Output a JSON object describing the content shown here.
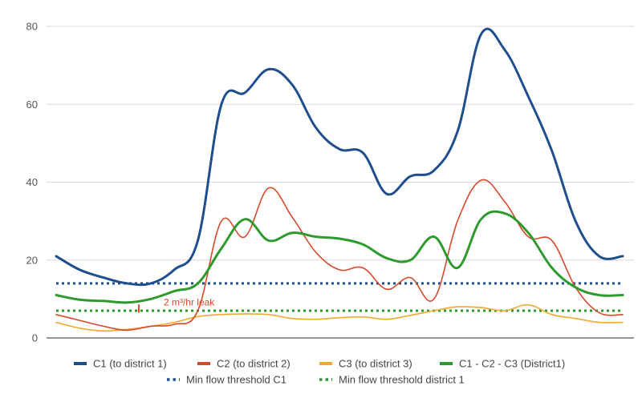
{
  "chart_data": {
    "type": "line",
    "title": "",
    "xlabel": "",
    "ylabel": "",
    "ylim": [
      0,
      80
    ],
    "yticks": [
      0,
      20,
      40,
      60,
      80
    ],
    "grid": "horizontal",
    "legend_position": "bottom",
    "series": [
      {
        "name": "C1 (to district 1)",
        "color": "#1f4e8f",
        "style": "solid",
        "x": [
          0,
          1,
          2,
          3,
          4,
          5,
          6,
          7,
          8,
          9,
          10,
          11,
          12,
          13,
          14,
          15,
          16,
          17,
          18,
          19,
          20,
          21,
          22,
          23,
          24
        ],
        "values": [
          21,
          17.5,
          15.5,
          14,
          14,
          17.5,
          25,
          60,
          63,
          69,
          65,
          54,
          48.5,
          47.5,
          37,
          41.5,
          43,
          53,
          78,
          74,
          62,
          48,
          30,
          21,
          21
        ]
      },
      {
        "name": "C2 (to district 2)",
        "color": "#d9482b",
        "style": "solid",
        "x": [
          0,
          1,
          2,
          3,
          4,
          5,
          6,
          7,
          8,
          9,
          10,
          11,
          12,
          13,
          14,
          15,
          16,
          17,
          18,
          19,
          20,
          21,
          22,
          23,
          24
        ],
        "values": [
          6,
          4.5,
          3,
          2,
          3,
          3.5,
          7,
          30,
          26,
          38.5,
          31,
          22,
          17.5,
          18,
          12.5,
          15.5,
          10,
          30,
          40.5,
          35,
          26,
          25,
          13,
          6.5,
          6
        ]
      },
      {
        "name": "C3 (to district 3)",
        "color": "#f2a72e",
        "style": "solid",
        "x": [
          0,
          1,
          2,
          3,
          4,
          5,
          6,
          7,
          8,
          9,
          10,
          11,
          12,
          13,
          14,
          15,
          16,
          17,
          18,
          19,
          20,
          21,
          22,
          23,
          24
        ],
        "values": [
          4,
          2.5,
          1.8,
          2.2,
          3,
          4,
          5.5,
          6,
          6.2,
          6,
          5,
          4.8,
          5.2,
          5.4,
          4.8,
          5.8,
          7,
          8,
          7.8,
          7,
          8.5,
          6,
          5,
          4,
          4
        ]
      },
      {
        "name": "C1 - C2 - C3 (District1)",
        "color": "#2e9a2e",
        "style": "solid",
        "x": [
          0,
          1,
          2,
          3,
          4,
          5,
          6,
          7,
          8,
          9,
          10,
          11,
          12,
          13,
          14,
          15,
          16,
          17,
          18,
          19,
          20,
          21,
          22,
          23,
          24
        ],
        "values": [
          11,
          9.8,
          9.5,
          9.1,
          10,
          12,
          14,
          23,
          30.5,
          25,
          27,
          26,
          25.5,
          24,
          20.5,
          20,
          26,
          18,
          30.5,
          32,
          27,
          18,
          13,
          11,
          11
        ]
      },
      {
        "name": "Min flow threshold C1",
        "color": "#1f4e8f",
        "style": "dotted",
        "x": [
          0,
          24
        ],
        "values": [
          14,
          14
        ]
      },
      {
        "name": "Min flow threshold district 1",
        "color": "#2e9a2e",
        "style": "dotted",
        "x": [
          0,
          24
        ],
        "values": [
          7,
          7
        ]
      }
    ],
    "annotations": [
      {
        "text": "2 m³/hr leak",
        "color": "#d9482b"
      }
    ]
  }
}
